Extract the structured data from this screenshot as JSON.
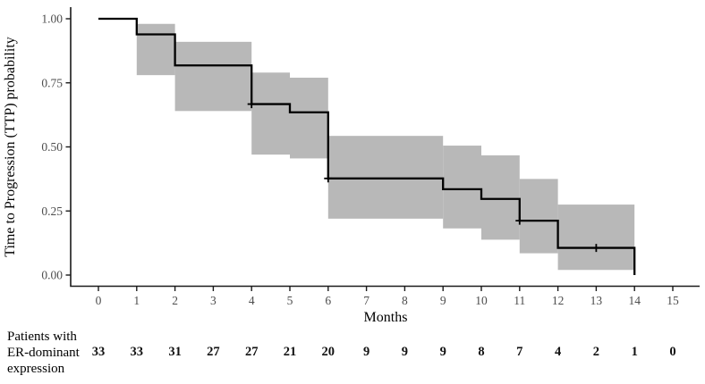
{
  "chart_data": {
    "type": "line",
    "subtype": "kaplan-meier-step",
    "xlabel": "Months",
    "ylabel": "Time to Progression (TTP) probability",
    "xlim": [
      0,
      15
    ],
    "ylim": [
      0.0,
      1.0
    ],
    "grid": false,
    "legend_position": "none",
    "x_ticks": [
      0,
      1,
      2,
      3,
      4,
      5,
      6,
      7,
      8,
      9,
      10,
      11,
      12,
      13,
      14,
      15
    ],
    "y_ticks": [
      1.0,
      0.75,
      0.5,
      0.25,
      0.0
    ],
    "y_tick_labels": [
      "1.00",
      "0.75",
      "0.50",
      "0.25",
      "0.00"
    ],
    "series": [
      {
        "name": "ER-dominant expression",
        "steps": [
          [
            0,
            1.0
          ],
          [
            1,
            0.939
          ],
          [
            2,
            0.818
          ],
          [
            4,
            0.667
          ],
          [
            5,
            0.635
          ],
          [
            6,
            0.377
          ],
          [
            9,
            0.335
          ],
          [
            10,
            0.297
          ],
          [
            11,
            0.212
          ],
          [
            12,
            0.106
          ],
          [
            14,
            0.0
          ]
        ],
        "censor_marks": [
          [
            4,
            0.667
          ],
          [
            6,
            0.377
          ],
          [
            11,
            0.212
          ],
          [
            13,
            0.106
          ]
        ],
        "ci_band": [
          [
            1,
            2,
            0.78,
            0.98
          ],
          [
            2,
            4,
            0.64,
            0.91
          ],
          [
            4,
            5,
            0.47,
            0.79
          ],
          [
            5,
            6,
            0.455,
            0.77
          ],
          [
            6,
            9,
            0.22,
            0.543
          ],
          [
            9,
            10,
            0.182,
            0.505
          ],
          [
            10,
            11,
            0.138,
            0.467
          ],
          [
            11,
            12,
            0.085,
            0.375
          ],
          [
            12,
            14,
            0.02,
            0.275
          ]
        ]
      }
    ],
    "colors": {
      "line": "#000000",
      "ci_fill": "#b8b8b8",
      "axis": "#1a1a1a",
      "tick_label": "#4d4d4d",
      "axis_label": "#000000"
    }
  },
  "risk_table": {
    "label_lines": [
      "Patients with",
      "ER-dominant",
      "expression"
    ],
    "counts": [
      33,
      33,
      31,
      27,
      27,
      21,
      20,
      9,
      9,
      9,
      8,
      7,
      4,
      2,
      1,
      0
    ]
  }
}
